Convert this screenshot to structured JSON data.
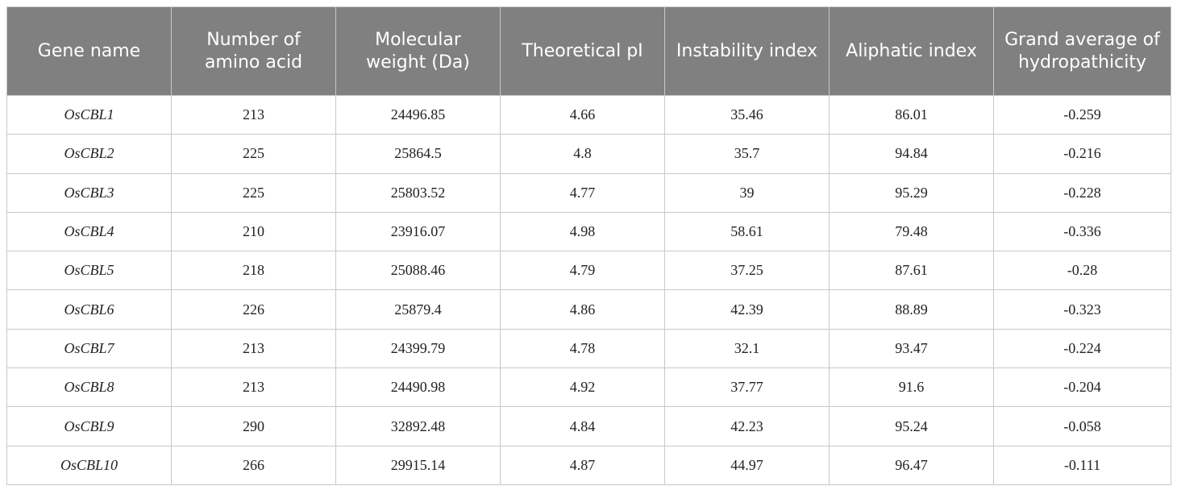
{
  "table": {
    "header": [
      "Gene name",
      "Number of amino acid",
      "Molecular weight (Da)",
      "Theoretical pI",
      "Instability index",
      "Aliphatic index",
      "Grand average of hydropathicity"
    ],
    "rows": [
      [
        "OsCBL1",
        "213",
        "24496.85",
        "4.66",
        "35.46",
        "86.01",
        "-0.259"
      ],
      [
        "OsCBL2",
        "225",
        "25864.5",
        "4.8",
        "35.7",
        "94.84",
        "-0.216"
      ],
      [
        "OsCBL3",
        "225",
        "25803.52",
        "4.77",
        "39",
        "95.29",
        "-0.228"
      ],
      [
        "OsCBL4",
        "210",
        "23916.07",
        "4.98",
        "58.61",
        "79.48",
        "-0.336"
      ],
      [
        "OsCBL5",
        "218",
        "25088.46",
        "4.79",
        "37.25",
        "87.61",
        "-0.28"
      ],
      [
        "OsCBL6",
        "226",
        "25879.4",
        "4.86",
        "42.39",
        "88.89",
        "-0.323"
      ],
      [
        "OsCBL7",
        "213",
        "24399.79",
        "4.78",
        "32.1",
        "93.47",
        "-0.224"
      ],
      [
        "OsCBL8",
        "213",
        "24490.98",
        "4.92",
        "37.77",
        "91.6",
        "-0.204"
      ],
      [
        "OsCBL9",
        "290",
        "32892.48",
        "4.84",
        "42.23",
        "95.24",
        "-0.058"
      ],
      [
        "OsCBL10",
        "266",
        "29915.14",
        "4.87",
        "44.97",
        "96.47",
        "-0.111"
      ]
    ]
  }
}
